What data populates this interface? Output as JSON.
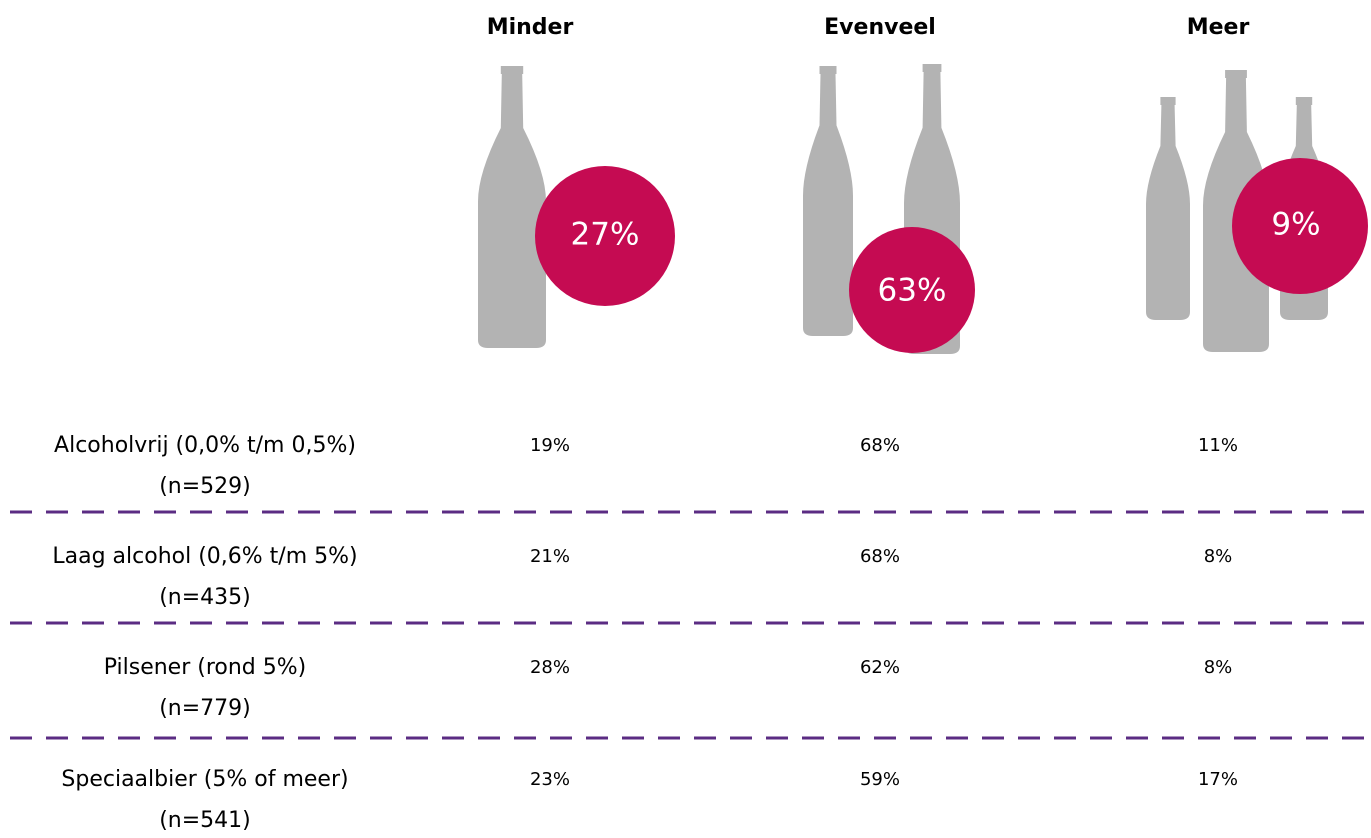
{
  "columns": [
    {
      "title": "Minder",
      "total": "27%"
    },
    {
      "title": "Evenveel",
      "total": "63%"
    },
    {
      "title": "Meer",
      "total": "9%"
    }
  ],
  "rows": [
    {
      "label": "Alcoholvrij (0,0% t/m 0,5%)",
      "n": "(n=529)",
      "values": [
        "19%",
        "68%",
        "11%"
      ]
    },
    {
      "label": "Laag alcohol (0,6% t/m 5%)",
      "n": "(n=435)",
      "values": [
        "21%",
        "68%",
        "8%"
      ]
    },
    {
      "label": "Pilsener (rond 5%)",
      "n": "(n=779)",
      "values": [
        "28%",
        "62%",
        "8%"
      ]
    },
    {
      "label": "Speciaalbier (5% of meer)",
      "n": "(n=541)",
      "values": [
        "23%",
        "59%",
        "17%"
      ]
    }
  ]
}
